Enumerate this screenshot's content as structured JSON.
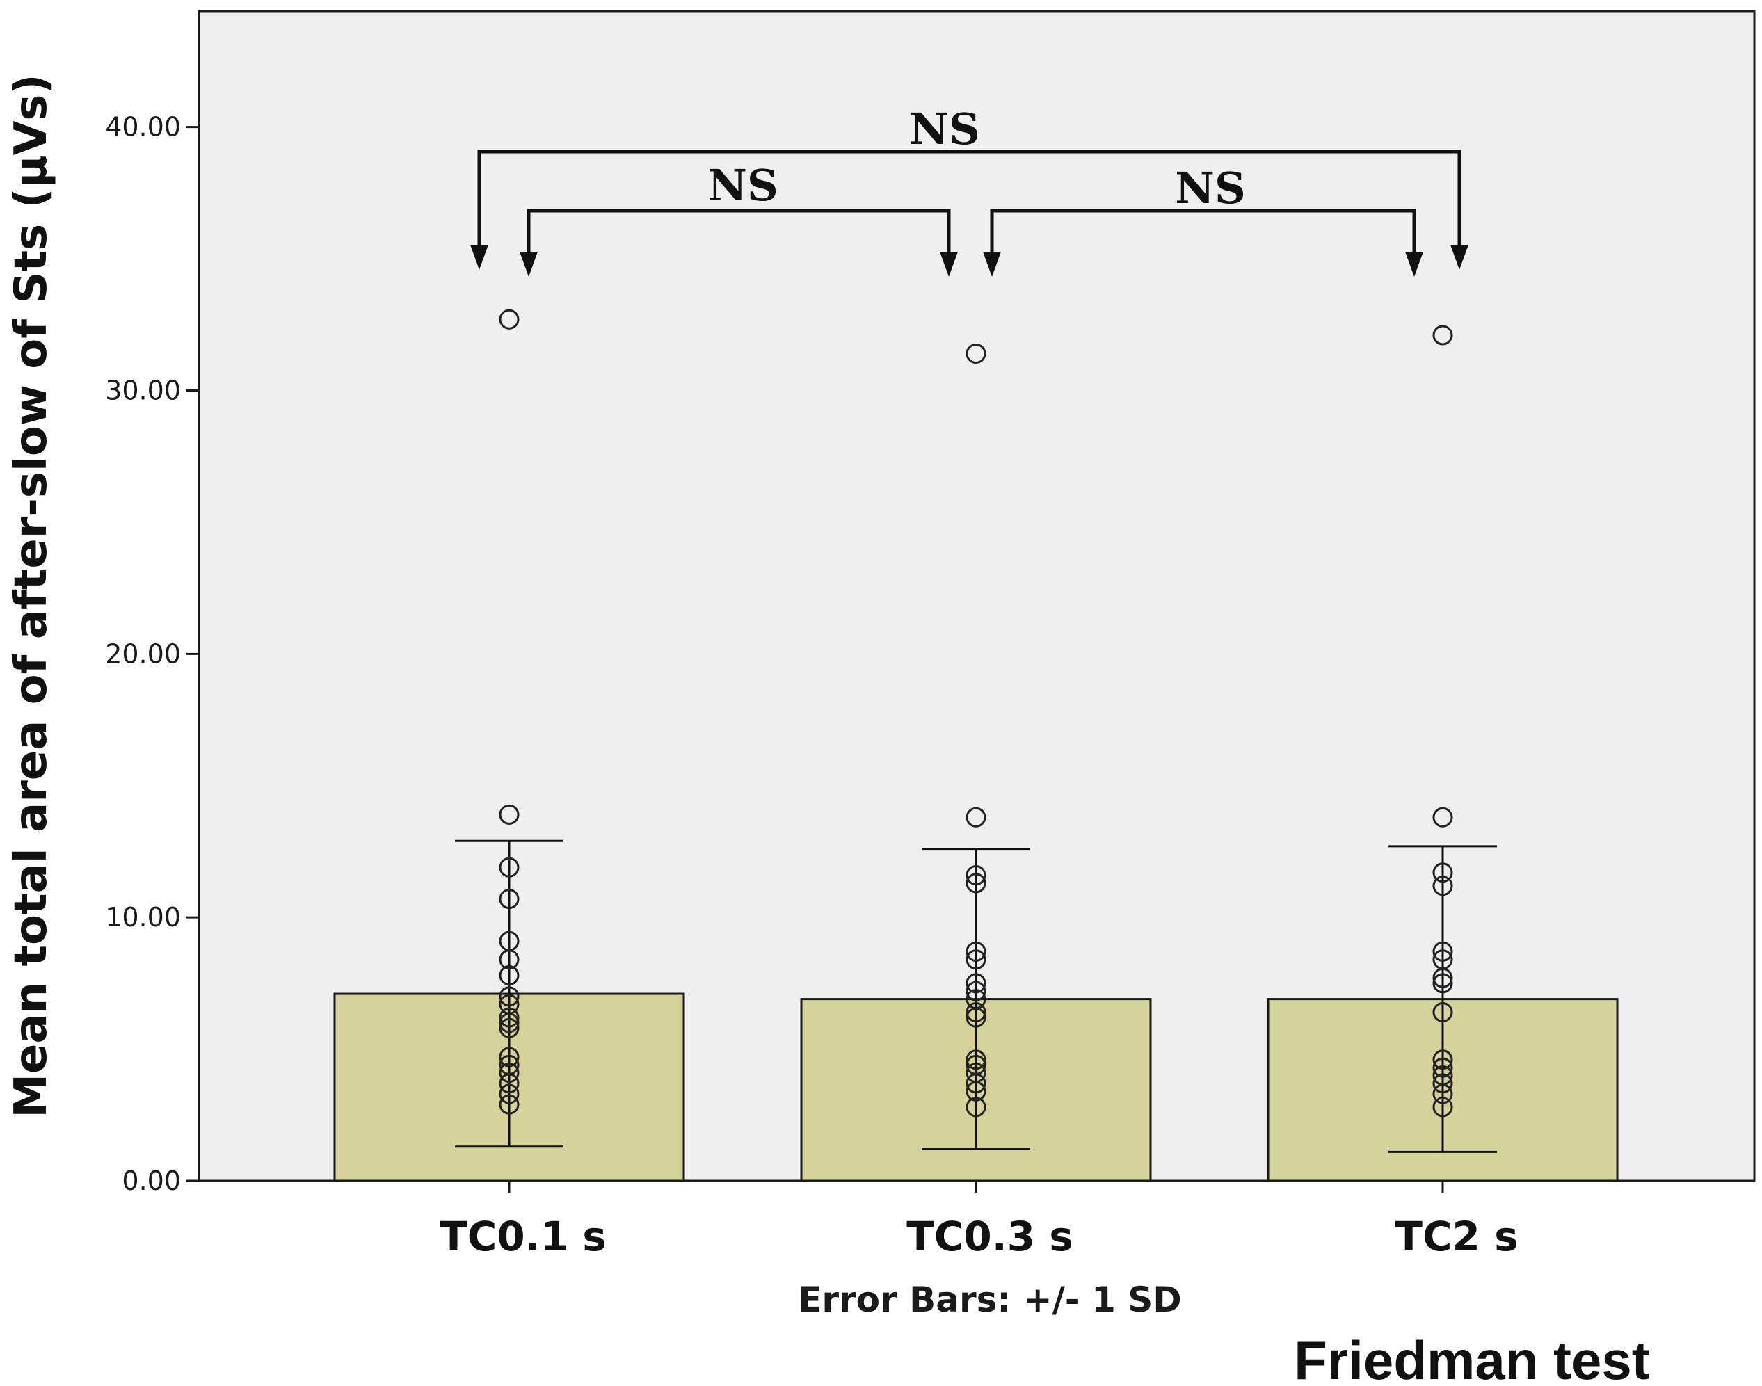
{
  "chart_data": {
    "type": "bar",
    "categories": [
      "TC0.1 s",
      "TC0.3 s",
      "TC2 s"
    ],
    "values": [
      7.1,
      6.9,
      6.9
    ],
    "sd_upper": [
      12.9,
      12.6,
      12.7
    ],
    "sd_lower": [
      1.3,
      1.2,
      1.1
    ],
    "points": [
      [
        32.7,
        13.9,
        11.9,
        10.7,
        9.1,
        8.4,
        7.8,
        7.0,
        6.7,
        6.2,
        6.0,
        5.8,
        4.7,
        4.4,
        4.1,
        3.7,
        3.3,
        2.9
      ],
      [
        31.4,
        13.8,
        11.6,
        11.3,
        8.7,
        8.4,
        7.5,
        7.2,
        6.9,
        6.4,
        6.2,
        4.6,
        4.4,
        4.1,
        3.7,
        3.4,
        2.8
      ],
      [
        32.1,
        13.8,
        11.7,
        11.2,
        8.7,
        8.4,
        7.7,
        7.5,
        6.4,
        4.6,
        4.3,
        4.0,
        3.7,
        3.3,
        2.8
      ]
    ],
    "xlabel": "",
    "ylabel": "Mean total area of after-slow of Sts (µVs)",
    "ylim": [
      0,
      44.4
    ],
    "yticks": [
      "0.00",
      "10.00",
      "20.00",
      "30.00",
      "40.00"
    ],
    "ytick_values": [
      0,
      10,
      20,
      30,
      40
    ],
    "note": "Error Bars: +/- 1 SD",
    "test_label": "Friedman test",
    "significance": [
      {
        "from": 0,
        "to": 2,
        "label": "NS"
      },
      {
        "from": 0,
        "to": 1,
        "label": "NS"
      },
      {
        "from": 1,
        "to": 2,
        "label": "NS"
      }
    ],
    "grid": false,
    "legend": "none",
    "colors": {
      "bar_fill": "#d5d29b",
      "bar_stroke": "#1a1a1a",
      "plot_bg": "#efefef",
      "marker_stroke": "#222222"
    }
  }
}
